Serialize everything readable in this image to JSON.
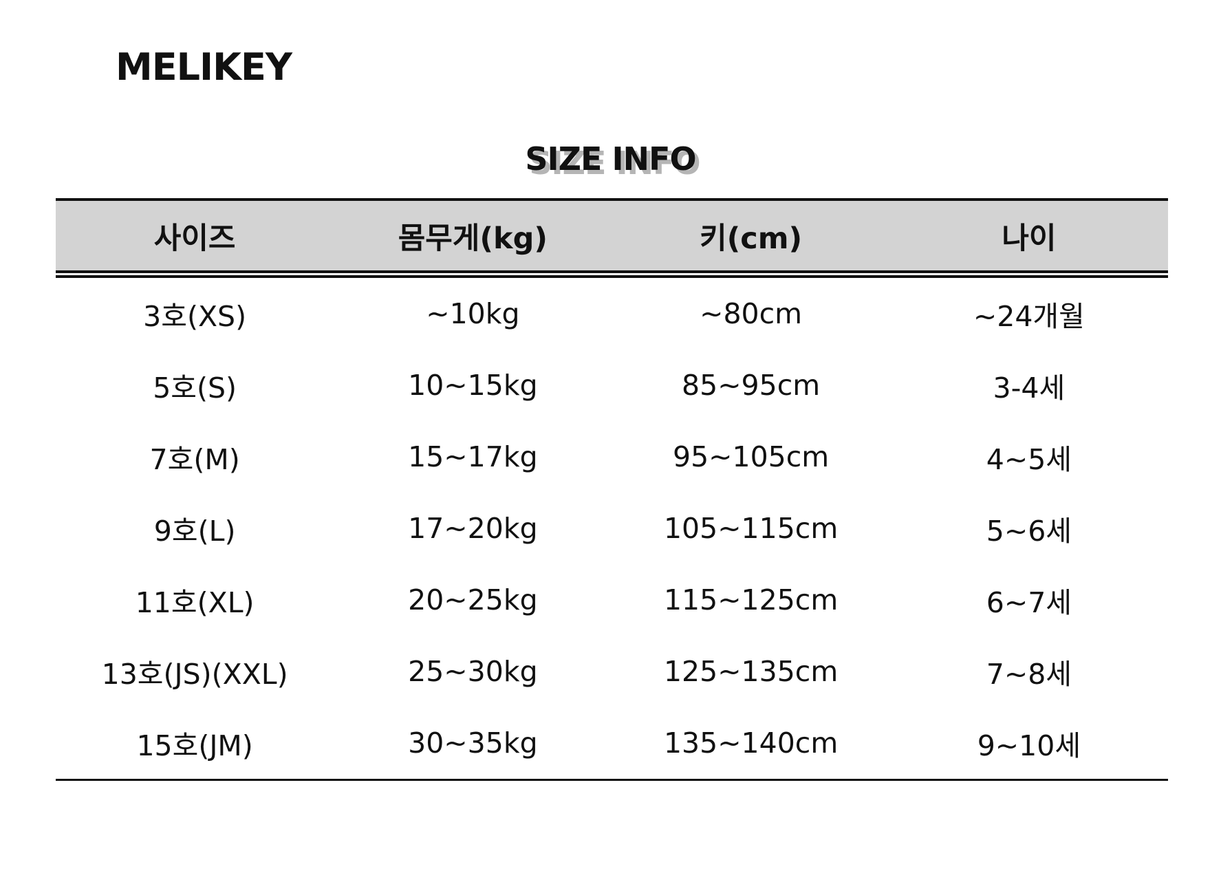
{
  "brand": "MELIKEY",
  "title": "SIZE INFO",
  "table": {
    "headers": [
      "사이즈",
      "몸무게(kg)",
      "키(cm)",
      "나이"
    ],
    "rows": [
      [
        "3호(XS)",
        "~10kg",
        "~80cm",
        "~24개월"
      ],
      [
        "5호(S)",
        "10~15kg",
        "85~95cm",
        "3-4세"
      ],
      [
        "7호(M)",
        "15~17kg",
        "95~105cm",
        "4~5세"
      ],
      [
        "9호(L)",
        "17~20kg",
        "105~115cm",
        "5~6세"
      ],
      [
        "11호(XL)",
        "20~25kg",
        "115~125cm",
        "6~7세"
      ],
      [
        "13호(JS)(XXL)",
        "25~30kg",
        "125~135cm",
        "7~8세"
      ],
      [
        "15호(JM)",
        "30~35kg",
        "135~140cm",
        "9~10세"
      ]
    ]
  },
  "colors": {
    "header_bg": "#d3d3d3",
    "text": "#111111",
    "title_shadow": "#b5b5b5"
  }
}
